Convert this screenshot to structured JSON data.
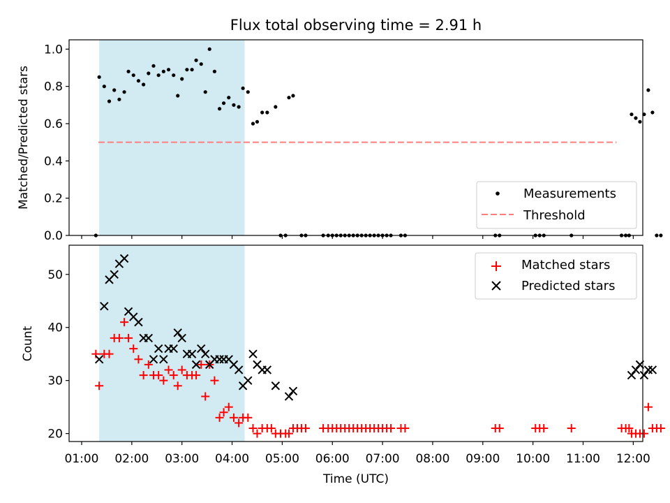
{
  "chart_data": [
    {
      "type": "scatter",
      "title": "Flux total observing time = 2.91 h",
      "ylabel": "Matched/Predicted stars",
      "ylim": [
        0,
        1.05
      ],
      "yticks": [
        "0.0",
        "0.2",
        "0.4",
        "0.6",
        "0.8",
        "1.0"
      ],
      "highlight_span": {
        "start": "01:21",
        "end": "04:15",
        "color": "#add8e6"
      },
      "legend_position": "lower right",
      "threshold": {
        "name": "Threshold",
        "value": 0.5,
        "from": "01:20",
        "to": "11:40",
        "color": "#ff7f7f"
      },
      "series": [
        {
          "name": "Measurements",
          "color": "#000000",
          "marker": "dot",
          "points": [
            [
              "01:17",
              0.0
            ],
            [
              "01:21",
              0.85
            ],
            [
              "01:27",
              0.8
            ],
            [
              "01:33",
              0.72
            ],
            [
              "01:39",
              0.78
            ],
            [
              "01:45",
              0.73
            ],
            [
              "01:51",
              0.77
            ],
            [
              "01:56",
              0.88
            ],
            [
              "02:02",
              0.86
            ],
            [
              "02:08",
              0.83
            ],
            [
              "02:14",
              0.81
            ],
            [
              "02:20",
              0.87
            ],
            [
              "02:26",
              0.91
            ],
            [
              "02:32",
              0.86
            ],
            [
              "02:38",
              0.88
            ],
            [
              "02:44",
              0.89
            ],
            [
              "02:50",
              0.86
            ],
            [
              "02:55",
              0.75
            ],
            [
              "03:00",
              0.84
            ],
            [
              "03:06",
              0.89
            ],
            [
              "03:12",
              0.89
            ],
            [
              "03:17",
              0.94
            ],
            [
              "03:23",
              0.92
            ],
            [
              "03:28",
              0.77
            ],
            [
              "03:33",
              1.0
            ],
            [
              "03:39",
              0.88
            ],
            [
              "03:45",
              0.68
            ],
            [
              "03:50",
              0.71
            ],
            [
              "03:56",
              0.74
            ],
            [
              "04:02",
              0.7
            ],
            [
              "04:08",
              0.69
            ],
            [
              "04:13",
              0.79
            ],
            [
              "04:19",
              0.77
            ],
            [
              "04:25",
              0.6
            ],
            [
              "04:30",
              0.61
            ],
            [
              "04:36",
              0.66
            ],
            [
              "04:42",
              0.66
            ],
            [
              "04:52",
              0.69
            ],
            [
              "04:58",
              0.0
            ],
            [
              "05:04",
              0.0
            ],
            [
              "05:08",
              0.74
            ],
            [
              "05:13",
              0.75
            ],
            [
              "05:23",
              0.0
            ],
            [
              "05:28",
              0.0
            ],
            [
              "05:49",
              0.0
            ],
            [
              "05:55",
              0.0
            ],
            [
              "06:00",
              0.0
            ],
            [
              "06:05",
              0.0
            ],
            [
              "06:10",
              0.0
            ],
            [
              "06:15",
              0.0
            ],
            [
              "06:20",
              0.0
            ],
            [
              "06:25",
              0.0
            ],
            [
              "06:30",
              0.0
            ],
            [
              "06:35",
              0.0
            ],
            [
              "06:40",
              0.0
            ],
            [
              "06:45",
              0.0
            ],
            [
              "06:50",
              0.0
            ],
            [
              "06:55",
              0.0
            ],
            [
              "07:00",
              0.0
            ],
            [
              "07:05",
              0.0
            ],
            [
              "07:10",
              0.0
            ],
            [
              "07:22",
              0.0
            ],
            [
              "07:27",
              0.0
            ],
            [
              "09:15",
              0.0
            ],
            [
              "09:20",
              0.0
            ],
            [
              "10:03",
              0.0
            ],
            [
              "10:08",
              0.0
            ],
            [
              "10:13",
              0.0
            ],
            [
              "10:46",
              0.0
            ],
            [
              "11:46",
              0.0
            ],
            [
              "11:51",
              0.0
            ],
            [
              "11:55",
              0.0
            ],
            [
              "11:58",
              0.65
            ],
            [
              "12:03",
              0.63
            ],
            [
              "12:08",
              0.61
            ],
            [
              "12:13",
              0.65
            ],
            [
              "12:18",
              0.78
            ],
            [
              "12:23",
              0.66
            ],
            [
              "12:28",
              0.0
            ],
            [
              "12:33",
              0.0
            ]
          ]
        }
      ],
      "xticks": [
        "01:00",
        "02:00",
        "03:00",
        "04:00",
        "05:00",
        "06:00",
        "07:00",
        "08:00",
        "09:00",
        "10:00",
        "11:00",
        "12:00"
      ]
    },
    {
      "type": "scatter",
      "xlabel": "Time (UTC)",
      "ylabel": "Count",
      "ylim": [
        18.5,
        55.5
      ],
      "yticks": [
        "20",
        "30",
        "40",
        "50"
      ],
      "highlight_span": {
        "start": "01:21",
        "end": "04:15",
        "color": "#add8e6"
      },
      "legend_position": "upper right",
      "xticks": [
        "01:00",
        "02:00",
        "03:00",
        "04:00",
        "05:00",
        "06:00",
        "07:00",
        "08:00",
        "09:00",
        "10:00",
        "11:00",
        "12:00"
      ],
      "series": [
        {
          "name": "Matched stars",
          "color": "#ff0000",
          "marker": "plus",
          "points": [
            [
              "01:17",
              35
            ],
            [
              "01:21",
              29
            ],
            [
              "01:27",
              35
            ],
            [
              "01:33",
              35
            ],
            [
              "01:39",
              38
            ],
            [
              "01:45",
              38
            ],
            [
              "01:51",
              41
            ],
            [
              "01:56",
              38
            ],
            [
              "02:02",
              36
            ],
            [
              "02:08",
              34
            ],
            [
              "02:14",
              31
            ],
            [
              "02:20",
              33
            ],
            [
              "02:26",
              31
            ],
            [
              "02:32",
              31
            ],
            [
              "02:38",
              30
            ],
            [
              "02:44",
              32
            ],
            [
              "02:50",
              31
            ],
            [
              "02:55",
              29
            ],
            [
              "03:00",
              32
            ],
            [
              "03:06",
              31
            ],
            [
              "03:12",
              31
            ],
            [
              "03:17",
              31
            ],
            [
              "03:23",
              33
            ],
            [
              "03:28",
              27
            ],
            [
              "03:33",
              33
            ],
            [
              "03:39",
              30
            ],
            [
              "03:45",
              23
            ],
            [
              "03:50",
              24
            ],
            [
              "03:56",
              25
            ],
            [
              "04:02",
              23
            ],
            [
              "04:08",
              22
            ],
            [
              "04:13",
              23
            ],
            [
              "04:19",
              23
            ],
            [
              "04:25",
              21
            ],
            [
              "04:30",
              20
            ],
            [
              "04:36",
              21
            ],
            [
              "04:42",
              21
            ],
            [
              "04:47",
              21
            ],
            [
              "04:52",
              20
            ],
            [
              "04:58",
              20
            ],
            [
              "05:04",
              20
            ],
            [
              "05:08",
              20
            ],
            [
              "05:13",
              21
            ],
            [
              "05:18",
              21
            ],
            [
              "05:23",
              21
            ],
            [
              "05:28",
              21
            ],
            [
              "05:49",
              21
            ],
            [
              "05:55",
              21
            ],
            [
              "06:00",
              21
            ],
            [
              "06:05",
              21
            ],
            [
              "06:10",
              21
            ],
            [
              "06:15",
              21
            ],
            [
              "06:20",
              21
            ],
            [
              "06:25",
              21
            ],
            [
              "06:30",
              21
            ],
            [
              "06:35",
              21
            ],
            [
              "06:40",
              21
            ],
            [
              "06:45",
              21
            ],
            [
              "06:50",
              21
            ],
            [
              "06:55",
              21
            ],
            [
              "07:00",
              21
            ],
            [
              "07:05",
              21
            ],
            [
              "07:10",
              21
            ],
            [
              "07:22",
              21
            ],
            [
              "07:27",
              21
            ],
            [
              "09:15",
              21
            ],
            [
              "09:20",
              21
            ],
            [
              "10:03",
              21
            ],
            [
              "10:08",
              21
            ],
            [
              "10:13",
              21
            ],
            [
              "10:46",
              21
            ],
            [
              "11:46",
              21
            ],
            [
              "11:51",
              21
            ],
            [
              "11:55",
              21
            ],
            [
              "11:58",
              20
            ],
            [
              "12:03",
              20
            ],
            [
              "12:08",
              20
            ],
            [
              "12:13",
              20
            ],
            [
              "12:18",
              25
            ],
            [
              "12:23",
              21
            ],
            [
              "12:28",
              21
            ],
            [
              "12:33",
              21
            ]
          ]
        },
        {
          "name": "Predicted stars",
          "color": "#000000",
          "marker": "x",
          "points": [
            [
              "01:21",
              34
            ],
            [
              "01:27",
              44
            ],
            [
              "01:33",
              49
            ],
            [
              "01:39",
              50
            ],
            [
              "01:45",
              52
            ],
            [
              "01:51",
              53
            ],
            [
              "01:56",
              43
            ],
            [
              "02:02",
              42
            ],
            [
              "02:08",
              41
            ],
            [
              "02:14",
              38
            ],
            [
              "02:20",
              38
            ],
            [
              "02:26",
              34
            ],
            [
              "02:32",
              36
            ],
            [
              "02:38",
              34
            ],
            [
              "02:44",
              36
            ],
            [
              "02:50",
              36
            ],
            [
              "02:55",
              39
            ],
            [
              "03:00",
              38
            ],
            [
              "03:06",
              35
            ],
            [
              "03:12",
              35
            ],
            [
              "03:17",
              33
            ],
            [
              "03:23",
              36
            ],
            [
              "03:28",
              35
            ],
            [
              "03:33",
              33
            ],
            [
              "03:39",
              34
            ],
            [
              "03:45",
              34
            ],
            [
              "03:50",
              34
            ],
            [
              "03:56",
              34
            ],
            [
              "04:02",
              33
            ],
            [
              "04:08",
              32
            ],
            [
              "04:13",
              29
            ],
            [
              "04:19",
              30
            ],
            [
              "04:25",
              35
            ],
            [
              "04:30",
              33
            ],
            [
              "04:36",
              32
            ],
            [
              "04:42",
              32
            ],
            [
              "04:52",
              29
            ],
            [
              "05:08",
              27
            ],
            [
              "05:13",
              28
            ],
            [
              "11:58",
              31
            ],
            [
              "12:03",
              32
            ],
            [
              "12:08",
              33
            ],
            [
              "12:13",
              31
            ],
            [
              "12:18",
              32
            ],
            [
              "12:23",
              32
            ]
          ]
        }
      ]
    }
  ]
}
